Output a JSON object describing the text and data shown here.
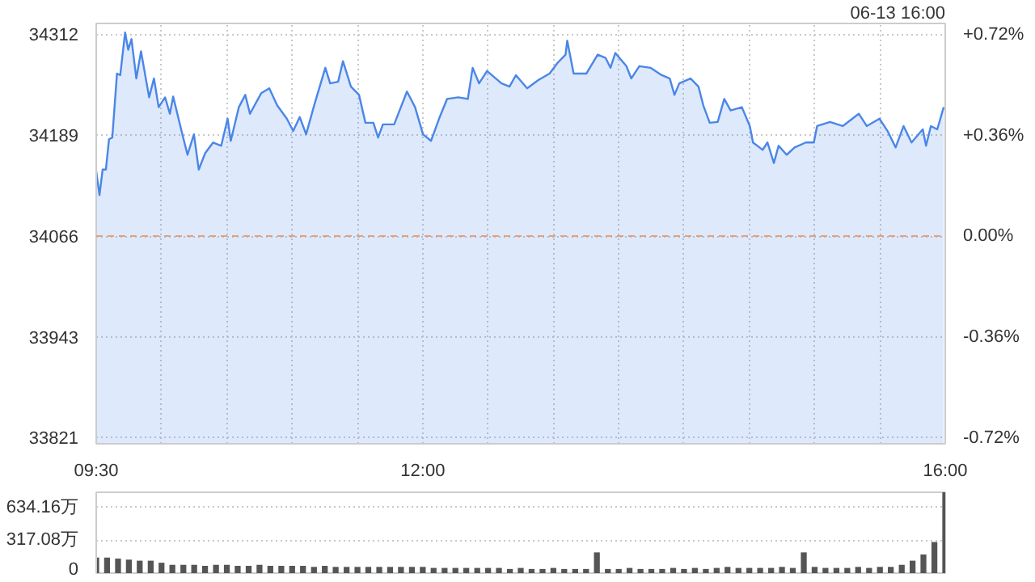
{
  "chart_data": [
    {
      "type": "area",
      "annotations": [
        "06-13 16:00"
      ],
      "color": "#4a86e8",
      "line_style": "solid",
      "marker": "none",
      "grid": true,
      "x": [
        9.5,
        9.525,
        9.549,
        9.574,
        9.598,
        9.623,
        9.659,
        9.684,
        9.721,
        9.745,
        9.77,
        9.807,
        9.843,
        9.905,
        9.942,
        9.978,
        10.027,
        10.064,
        10.089,
        10.15,
        10.199,
        10.248,
        10.285,
        10.334,
        10.395,
        10.457,
        10.506,
        10.53,
        10.592,
        10.641,
        10.677,
        10.763,
        10.825,
        10.886,
        10.959,
        11.008,
        11.058,
        11.107,
        11.168,
        11.254,
        11.291,
        11.352,
        11.389,
        11.45,
        11.512,
        11.561,
        11.622,
        11.658,
        11.695,
        11.781,
        11.879,
        11.941,
        12.002,
        12.063,
        12.125,
        12.186,
        12.272,
        12.345,
        12.382,
        12.431,
        12.492,
        12.603,
        12.664,
        12.713,
        12.799,
        12.885,
        12.971,
        13.032,
        13.093,
        13.106,
        13.155,
        13.253,
        13.339,
        13.4,
        13.437,
        13.474,
        13.559,
        13.596,
        13.658,
        13.743,
        13.829,
        13.891,
        13.927,
        13.964,
        14.05,
        14.111,
        14.148,
        14.197,
        14.258,
        14.308,
        14.357,
        14.443,
        14.504,
        14.528,
        14.602,
        14.639,
        14.688,
        14.724,
        14.786,
        14.847,
        14.933,
        14.994,
        15.019,
        15.117,
        15.215,
        15.338,
        15.399,
        15.497,
        15.558,
        15.62,
        15.681,
        15.742,
        15.828,
        15.853,
        15.89,
        15.939,
        15.988
      ],
      "values": [
        34145,
        34116,
        34147,
        34147,
        34184,
        34186,
        34264,
        34262,
        34314,
        34293,
        34306,
        34258,
        34291,
        34235,
        34258,
        34223,
        34235,
        34215,
        34236,
        34196,
        34165,
        34190,
        34147,
        34167,
        34180,
        34176,
        34209,
        34182,
        34223,
        34238,
        34215,
        34240,
        34246,
        34225,
        34209,
        34194,
        34211,
        34190,
        34225,
        34271,
        34252,
        34254,
        34279,
        34248,
        34238,
        34204,
        34204,
        34186,
        34202,
        34202,
        34242,
        34223,
        34190,
        34182,
        34209,
        34233,
        34235,
        34233,
        34271,
        34252,
        34267,
        34252,
        34248,
        34262,
        34246,
        34256,
        34264,
        34277,
        34287,
        34304,
        34264,
        34264,
        34287,
        34283,
        34271,
        34289,
        34273,
        34258,
        34273,
        34271,
        34262,
        34258,
        34238,
        34252,
        34258,
        34248,
        34225,
        34204,
        34205,
        34233,
        34219,
        34223,
        34200,
        34180,
        34171,
        34180,
        34155,
        34176,
        34165,
        34174,
        34180,
        34180,
        34200,
        34205,
        34200,
        34215,
        34200,
        34209,
        34194,
        34174,
        34200,
        34180,
        34196,
        34176,
        34200,
        34196,
        34223
      ],
      "xlim": [
        9.5,
        16
      ],
      "xticks": [
        {
          "value": 9.5,
          "label": "09:30"
        },
        {
          "value": 10,
          "label": null
        },
        {
          "value": 10.5,
          "label": null
        },
        {
          "value": 11,
          "label": null
        },
        {
          "value": 11.5,
          "label": null
        },
        {
          "value": 12,
          "label": "12:00"
        },
        {
          "value": 12.5,
          "label": null
        },
        {
          "value": 13,
          "label": null
        },
        {
          "value": 13.5,
          "label": null
        },
        {
          "value": 14,
          "label": null
        },
        {
          "value": 14.5,
          "label": null
        },
        {
          "value": 15,
          "label": null
        },
        {
          "value": 15.5,
          "label": null
        },
        {
          "value": 16,
          "label": "16:00"
        }
      ],
      "ylim": [
        33813,
        34325
      ],
      "yticks": [
        33821,
        33943,
        34066,
        34189,
        34312
      ],
      "y2lim": [
        -0.74,
        0.76
      ],
      "y2ticks": [
        {
          "value": -0.72,
          "label": "-0.72%"
        },
        {
          "value": -0.36,
          "label": "-0.36%"
        },
        {
          "value": 0,
          "label": "0.00%"
        },
        {
          "value": 0.36,
          "label": "+0.36%"
        },
        {
          "value": 0.72,
          "label": "+0.72%"
        }
      ],
      "ref_lines": [
        {
          "axis": "y",
          "value": 34066,
          "label": null,
          "color": "#e8a07a",
          "line_style": "dashed"
        }
      ]
    },
    {
      "type": "bar",
      "color": "#555555",
      "grid": "y",
      "tick_labels": "y",
      "xlim": [
        9.5,
        16
      ],
      "x": [
        9.5,
        9.583,
        9.667,
        9.75,
        9.833,
        9.917,
        10.0,
        10.083,
        10.167,
        10.25,
        10.333,
        10.417,
        10.5,
        10.583,
        10.667,
        10.75,
        10.833,
        10.917,
        11.0,
        11.083,
        11.167,
        11.25,
        11.333,
        11.417,
        11.5,
        11.583,
        11.667,
        11.75,
        11.833,
        11.917,
        12.0,
        12.083,
        12.167,
        12.25,
        12.333,
        12.417,
        12.5,
        12.583,
        12.667,
        12.75,
        12.833,
        12.917,
        13.0,
        13.083,
        13.167,
        13.25,
        13.333,
        13.417,
        13.5,
        13.583,
        13.667,
        13.75,
        13.833,
        13.917,
        14.0,
        14.083,
        14.167,
        14.25,
        14.333,
        14.417,
        14.5,
        14.583,
        14.667,
        14.75,
        14.833,
        14.917,
        15.0,
        15.083,
        15.167,
        15.25,
        15.333,
        15.417,
        15.5,
        15.583,
        15.667,
        15.75,
        15.833,
        15.917,
        16.0
      ],
      "values": [
        150,
        150,
        140,
        130,
        120,
        120,
        100,
        80,
        80,
        80,
        70,
        80,
        80,
        70,
        70,
        80,
        70,
        70,
        70,
        70,
        60,
        70,
        60,
        60,
        60,
        60,
        60,
        60,
        60,
        60,
        60,
        50,
        50,
        50,
        50,
        50,
        50,
        50,
        40,
        50,
        40,
        40,
        50,
        40,
        40,
        40,
        200,
        40,
        40,
        50,
        40,
        40,
        40,
        50,
        40,
        50,
        40,
        50,
        60,
        50,
        50,
        50,
        50,
        60,
        50,
        200,
        60,
        50,
        50,
        50,
        60,
        50,
        60,
        60,
        80,
        120,
        180,
        300,
        780
      ],
      "ylim": [
        0,
        780
      ],
      "yticks": [
        0,
        {
          "value": 317.08,
          "label": "317.08万"
        },
        {
          "value": 634.16,
          "label": "634.16万"
        }
      ]
    }
  ]
}
